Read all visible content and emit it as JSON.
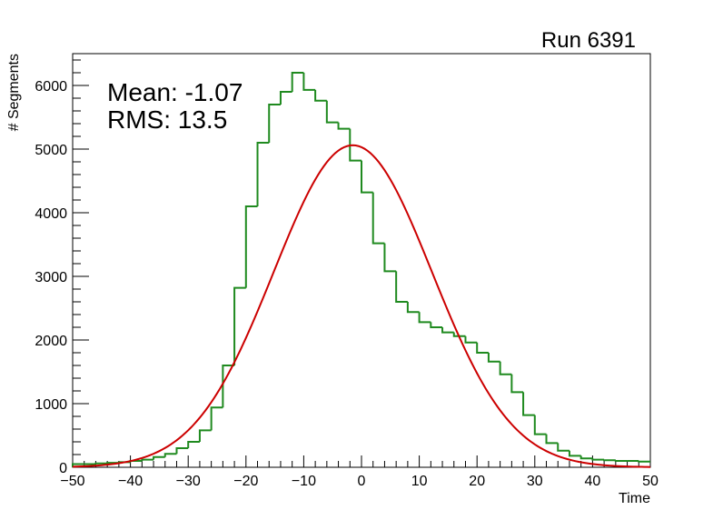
{
  "chart_data": {
    "type": "histogram",
    "title": "Run 6391",
    "xlabel": "Time",
    "ylabel": "# Segments",
    "xlim": [
      -50,
      50
    ],
    "ylim": [
      0,
      6500
    ],
    "x_ticks": [
      -50,
      -40,
      -30,
      -20,
      -10,
      0,
      10,
      20,
      30,
      40,
      50
    ],
    "x_tick_labels": [
      "−50",
      "−40",
      "−30",
      "−20",
      "−10",
      "0",
      "10",
      "20",
      "30",
      "40",
      "50"
    ],
    "y_ticks": [
      0,
      1000,
      2000,
      3000,
      4000,
      5000,
      6000
    ],
    "y_tick_labels": [
      "0",
      "1000",
      "2000",
      "3000",
      "4000",
      "5000",
      "6000"
    ],
    "stats": {
      "mean_label": "Mean: -1.07",
      "rms_label": "RMS:  13.5"
    },
    "histogram": {
      "name": "segments",
      "color": "#1f8a1f",
      "bin_width": 2,
      "bin_edges_start": -50,
      "values": [
        50,
        50,
        60,
        70,
        80,
        100,
        120,
        160,
        210,
        300,
        400,
        580,
        940,
        1600,
        2820,
        4100,
        5100,
        5700,
        5900,
        6200,
        5930,
        5760,
        5420,
        5320,
        4820,
        4320,
        3520,
        3080,
        2600,
        2440,
        2280,
        2200,
        2120,
        2060,
        1960,
        1800,
        1660,
        1460,
        1180,
        820,
        520,
        380,
        260,
        180,
        140,
        120,
        110,
        100,
        100,
        90
      ]
    },
    "fit": {
      "name": "gaussian-fit",
      "color": "#cc0000",
      "function": "gaussian",
      "amplitude": 5060,
      "mean": -1.5,
      "sigma": 13.7
    }
  }
}
